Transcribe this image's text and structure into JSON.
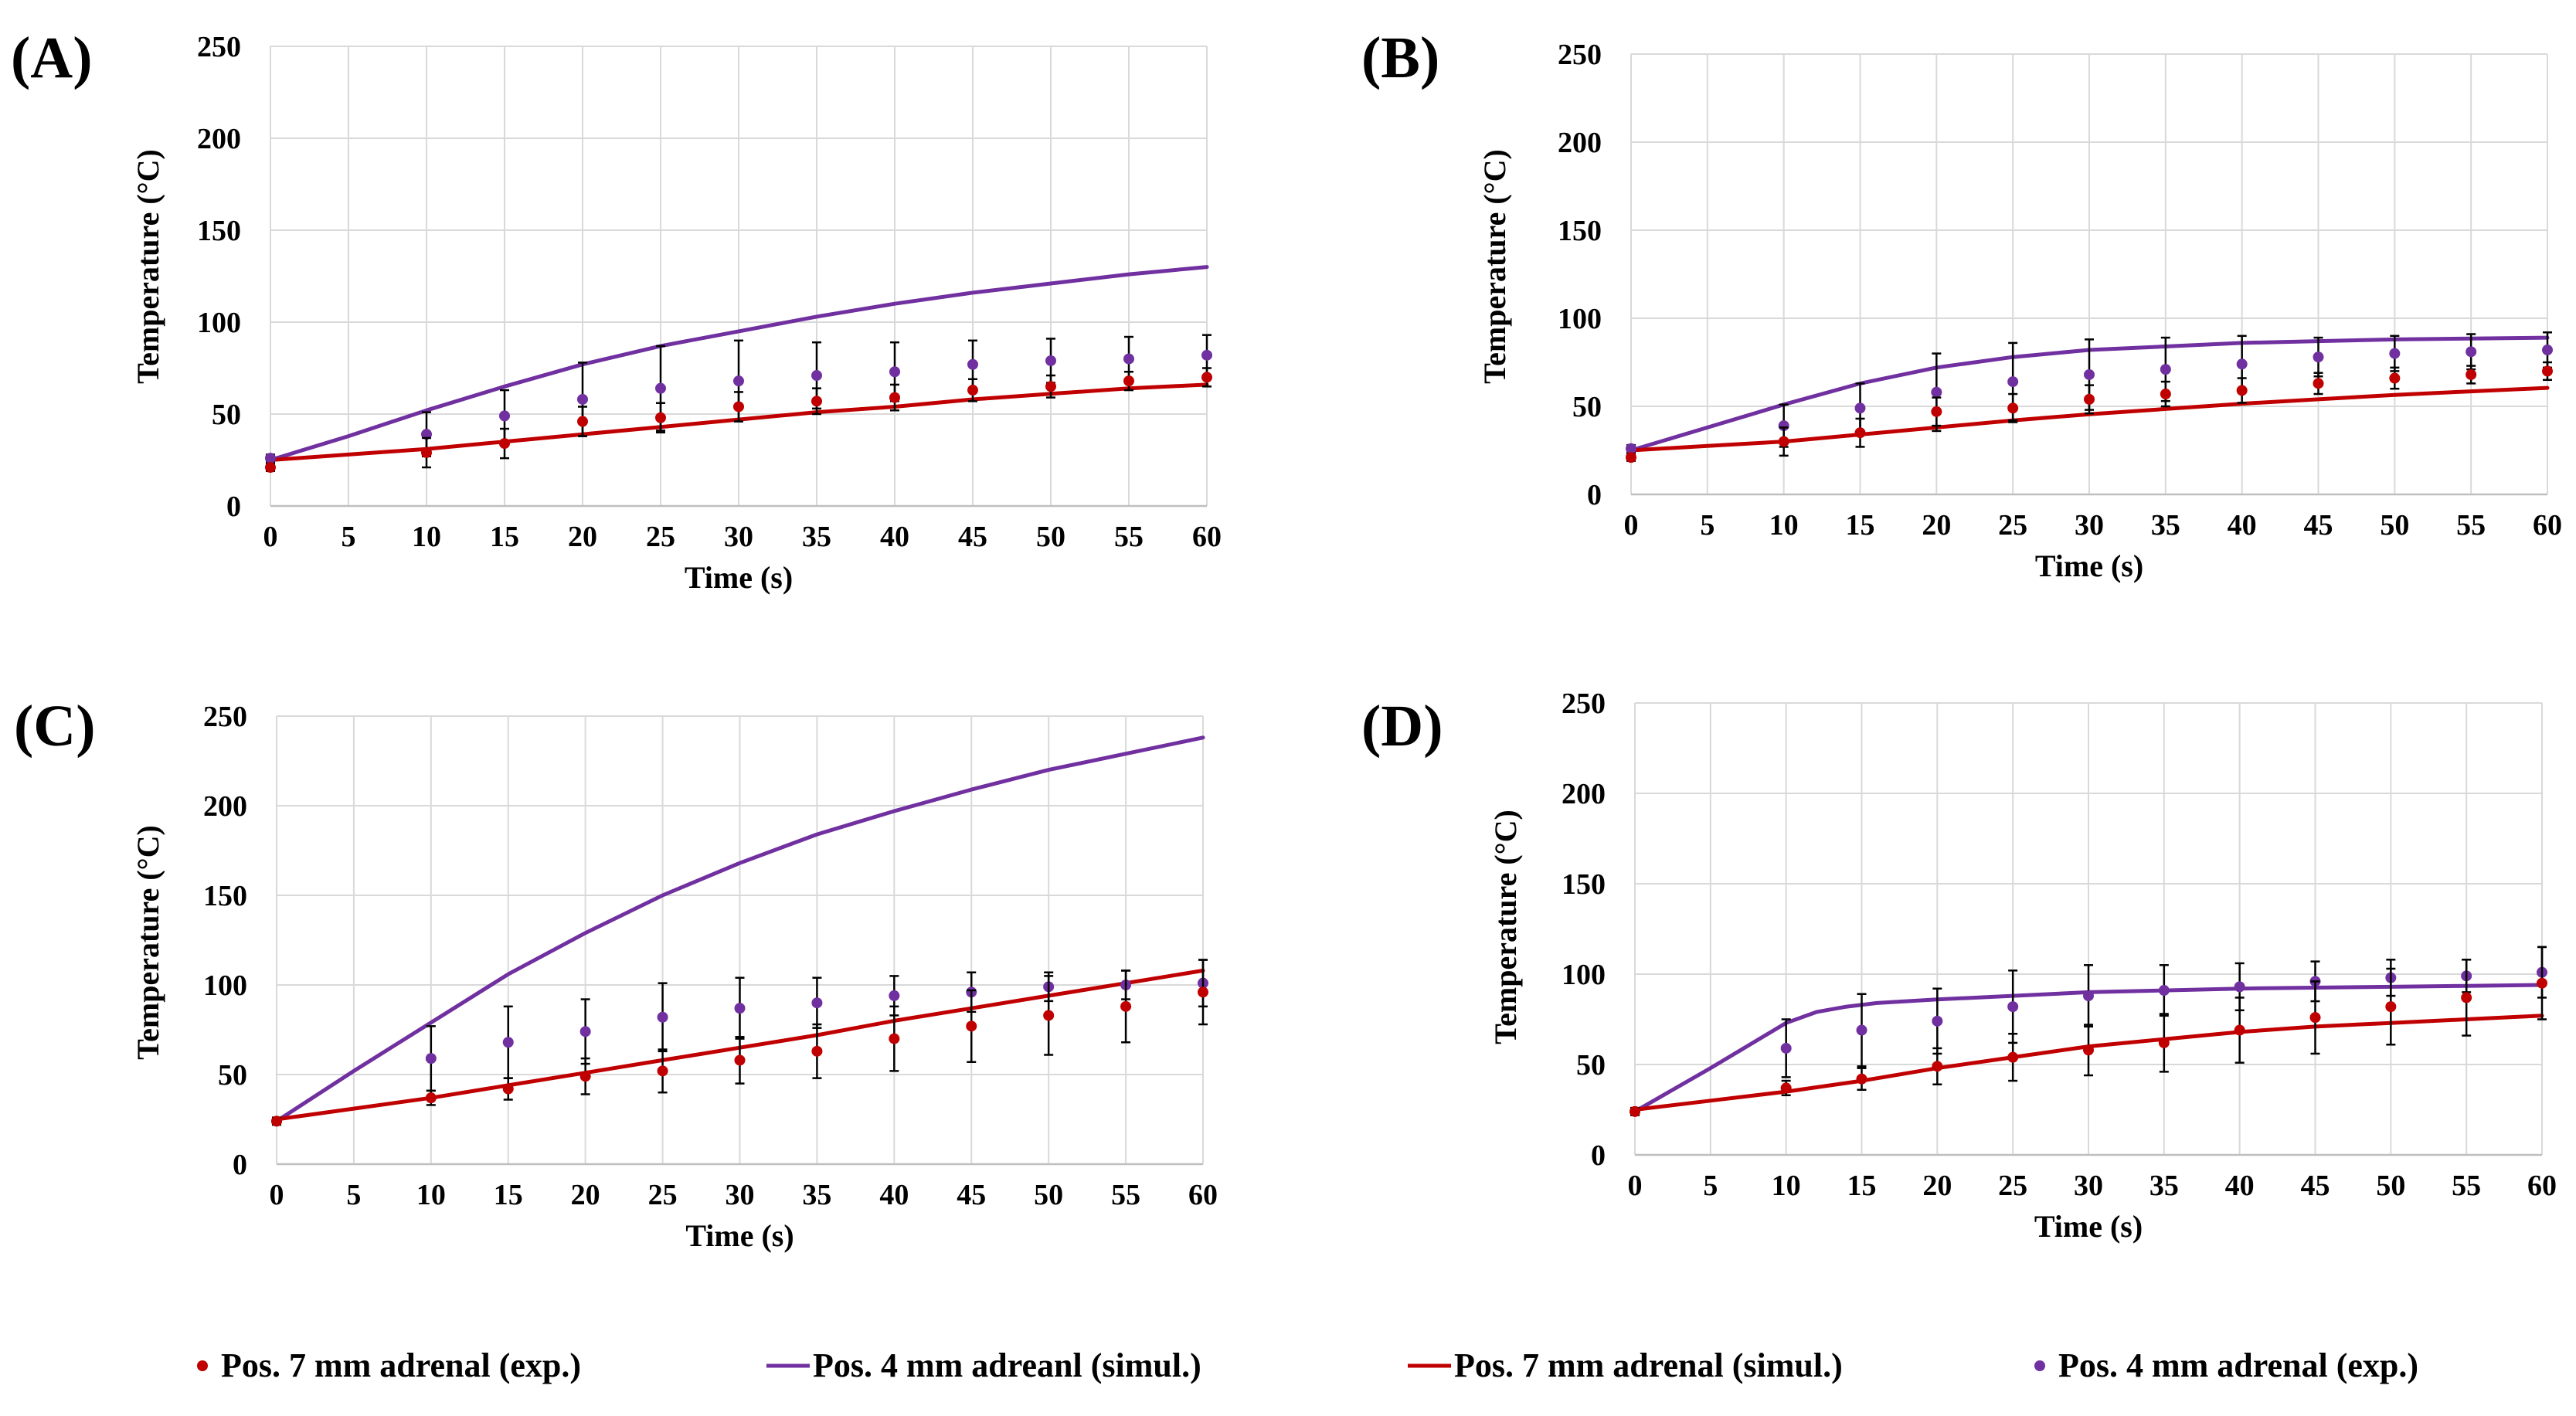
{
  "chart_data": [
    {
      "type": "line",
      "panel_label": "(A)",
      "xlabel": "Time (s)",
      "ylabel": "Temperature (°C)",
      "xlim": [
        0,
        60
      ],
      "ylim": [
        0,
        250
      ],
      "xticks": [
        0,
        5,
        10,
        15,
        20,
        25,
        30,
        35,
        40,
        45,
        50,
        55,
        60
      ],
      "yticks": [
        0,
        50,
        100,
        150,
        200,
        250
      ],
      "series": [
        {
          "name": "Pos. 4 mm adreanl (simul.)",
          "style": "line",
          "color": "#7030a0",
          "x": [
            0,
            5,
            10,
            15,
            20,
            25,
            30,
            35,
            40,
            45,
            50,
            55,
            60
          ],
          "y": [
            25,
            38,
            52,
            65,
            77,
            87,
            95,
            103,
            110,
            116,
            121,
            126,
            130
          ]
        },
        {
          "name": "Pos. 7 mm adrenal (simul.)",
          "style": "line",
          "color": "#c00000",
          "x": [
            0,
            5,
            10,
            15,
            20,
            25,
            30,
            35,
            40,
            45,
            50,
            55,
            60
          ],
          "y": [
            25,
            28,
            31,
            35,
            39,
            43,
            47,
            51,
            54,
            58,
            61,
            64,
            66
          ]
        },
        {
          "name": "Pos. 4 mm adrenal (exp.)",
          "style": "point",
          "color": "#7030a0",
          "x": [
            0,
            10,
            15,
            20,
            25,
            30,
            35,
            40,
            45,
            50,
            55,
            60
          ],
          "y": [
            26,
            39,
            49,
            58,
            64,
            68,
            71,
            73,
            77,
            79,
            80,
            82
          ],
          "err": [
            2,
            12,
            14,
            20,
            23,
            22,
            18,
            16,
            13,
            12,
            12,
            11
          ]
        },
        {
          "name": "Pos. 7 mm adrenal (exp.)",
          "style": "point",
          "color": "#c00000",
          "x": [
            0,
            10,
            15,
            20,
            25,
            30,
            35,
            40,
            45,
            50,
            55,
            60
          ],
          "y": [
            21,
            29,
            34,
            46,
            48,
            54,
            57,
            59,
            63,
            65,
            68,
            70
          ],
          "err": [
            2,
            8,
            8,
            8,
            8,
            8,
            7,
            7,
            6,
            6,
            5,
            5
          ]
        }
      ]
    },
    {
      "type": "line",
      "panel_label": "(B)",
      "xlabel": "Time (s)",
      "ylabel": "Temperature (°C)",
      "xlim": [
        0,
        60
      ],
      "ylim": [
        0,
        250
      ],
      "xticks": [
        0,
        5,
        10,
        15,
        20,
        25,
        30,
        35,
        40,
        45,
        50,
        55,
        60
      ],
      "yticks": [
        0,
        50,
        100,
        150,
        200,
        250
      ],
      "series": [
        {
          "name": "Pos. 4 mm adreanl (simul.)",
          "style": "line",
          "color": "#7030a0",
          "x": [
            0,
            5,
            10,
            15,
            20,
            25,
            30,
            35,
            40,
            45,
            50,
            55,
            60
          ],
          "y": [
            25,
            38,
            51,
            63,
            72,
            78,
            82,
            84,
            86,
            87,
            88,
            88.5,
            89
          ]
        },
        {
          "name": "Pos. 7 mm adrenal (simul.)",
          "style": "line",
          "color": "#c00000",
          "x": [
            0,
            5,
            10,
            15,
            20,
            25,
            30,
            35,
            40,
            45,
            50,
            55,
            60
          ],
          "y": [
            25,
            27.5,
            30,
            34,
            38,
            42,
            45.5,
            48.5,
            51.5,
            54,
            56.5,
            58.5,
            60.5
          ]
        },
        {
          "name": "Pos. 4 mm adrenal (exp.)",
          "style": "point",
          "color": "#7030a0",
          "x": [
            0,
            10,
            15,
            20,
            25,
            30,
            35,
            40,
            45,
            50,
            55,
            60
          ],
          "y": [
            26,
            39,
            49,
            58,
            64,
            68,
            71,
            74,
            78,
            80,
            81,
            82
          ],
          "err": [
            2,
            12,
            14,
            22,
            22,
            20,
            18,
            16,
            11,
            10,
            10,
            10
          ]
        },
        {
          "name": "Pos. 7 mm adrenal (exp.)",
          "style": "point",
          "color": "#c00000",
          "x": [
            0,
            10,
            15,
            20,
            25,
            30,
            35,
            40,
            45,
            50,
            55,
            60
          ],
          "y": [
            21,
            30,
            35,
            47,
            49,
            54,
            57,
            59,
            63,
            66,
            68,
            70
          ],
          "err": [
            2,
            8,
            8,
            8,
            8,
            8,
            7,
            7,
            6,
            6,
            5,
            5
          ]
        }
      ]
    },
    {
      "type": "line",
      "panel_label": "(C)",
      "xlabel": "Time (s)",
      "ylabel": "Temperature (°C)",
      "xlim": [
        0,
        60
      ],
      "ylim": [
        0,
        250
      ],
      "xticks": [
        0,
        5,
        10,
        15,
        20,
        25,
        30,
        35,
        40,
        45,
        50,
        55,
        60
      ],
      "yticks": [
        0,
        50,
        100,
        150,
        200,
        250
      ],
      "series": [
        {
          "name": "Pos. 4 mm adreanl (simul.)",
          "style": "line",
          "color": "#7030a0",
          "x": [
            0,
            5,
            10,
            15,
            20,
            25,
            30,
            35,
            40,
            45,
            50,
            55,
            60
          ],
          "y": [
            24,
            52,
            79,
            106,
            129,
            150,
            168,
            184,
            197,
            209,
            220,
            229,
            238
          ]
        },
        {
          "name": "Pos. 7 mm adrenal (simul.)",
          "style": "line",
          "color": "#c00000",
          "x": [
            0,
            5,
            10,
            15,
            20,
            25,
            30,
            35,
            40,
            45,
            50,
            55,
            60
          ],
          "y": [
            25,
            31,
            37,
            44,
            51,
            58,
            65,
            72,
            80,
            87,
            94,
            101,
            108
          ]
        },
        {
          "name": "Pos. 4 mm adrenal (exp.)",
          "style": "point",
          "color": "#7030a0",
          "x": [
            0,
            10,
            15,
            20,
            25,
            30,
            35,
            40,
            45,
            50,
            55,
            60
          ],
          "y": [
            24,
            59,
            68,
            74,
            82,
            87,
            90,
            94,
            96,
            99,
            100,
            101
          ],
          "err": [
            2,
            18,
            20,
            18,
            19,
            17,
            14,
            11,
            11,
            8,
            8,
            13
          ]
        },
        {
          "name": "Pos. 7 mm adrenal (exp.)",
          "style": "point",
          "color": "#c00000",
          "x": [
            0,
            10,
            15,
            20,
            25,
            30,
            35,
            40,
            45,
            50,
            55,
            60
          ],
          "y": [
            24,
            37,
            42,
            49,
            52,
            58,
            63,
            70,
            77,
            83,
            88,
            96
          ],
          "err": [
            2,
            4,
            6,
            10,
            12,
            13,
            15,
            18,
            20,
            22,
            20,
            18
          ]
        }
      ]
    },
    {
      "type": "line",
      "panel_label": "(D)",
      "xlabel": "Time (s)",
      "ylabel": "Temperature (°C)",
      "xlim": [
        0,
        60
      ],
      "ylim": [
        0,
        250
      ],
      "xticks": [
        0,
        5,
        10,
        15,
        20,
        25,
        30,
        35,
        40,
        45,
        50,
        55,
        60
      ],
      "yticks": [
        0,
        50,
        100,
        150,
        200,
        250
      ],
      "series": [
        {
          "name": "Pos. 4 mm adreanl (simul.)",
          "style": "line",
          "color": "#7030a0",
          "x": [
            0,
            5,
            10,
            12,
            14,
            16,
            20,
            25,
            30,
            35,
            40,
            45,
            50,
            55,
            60
          ],
          "y": [
            24,
            48,
            73,
            79,
            82,
            84,
            86,
            88,
            90,
            91,
            92,
            92.5,
            93,
            93.5,
            94
          ]
        },
        {
          "name": "Pos. 7 mm adrenal (simul.)",
          "style": "line",
          "color": "#c00000",
          "x": [
            0,
            5,
            10,
            15,
            20,
            25,
            30,
            35,
            40,
            45,
            50,
            55,
            60
          ],
          "y": [
            25,
            30,
            35,
            41,
            48,
            54,
            60,
            64,
            68,
            71,
            73,
            75,
            77
          ]
        },
        {
          "name": "Pos. 4 mm adrenal (exp.)",
          "style": "point",
          "color": "#7030a0",
          "x": [
            0,
            10,
            15,
            20,
            25,
            30,
            35,
            40,
            45,
            50,
            55,
            60
          ],
          "y": [
            24,
            59,
            69,
            74,
            82,
            88,
            91,
            93,
            96,
            98,
            99,
            101
          ],
          "err": [
            2,
            16,
            20,
            18,
            20,
            17,
            14,
            13,
            11,
            10,
            9,
            14
          ]
        },
        {
          "name": "Pos. 7 mm adrenal (exp.)",
          "style": "point",
          "color": "#c00000",
          "x": [
            0,
            10,
            15,
            20,
            25,
            30,
            35,
            40,
            45,
            50,
            55,
            60
          ],
          "y": [
            24,
            37,
            42,
            49,
            54,
            58,
            62,
            69,
            76,
            82,
            87,
            95
          ],
          "err": [
            2,
            4,
            6,
            10,
            13,
            14,
            16,
            18,
            20,
            21,
            21,
            20
          ]
        }
      ]
    }
  ],
  "legend": [
    {
      "label": "Pos. 7 mm adrenal (exp.)",
      "marker": "point",
      "color": "#c00000"
    },
    {
      "label": "Pos. 4 mm adreanl (simul.)",
      "marker": "line",
      "color": "#7030a0"
    },
    {
      "label": "Pos. 7 mm adrenal (simul.)",
      "marker": "line",
      "color": "#c00000"
    },
    {
      "label": "Pos. 4 mm adrenal (exp.)",
      "marker": "point",
      "color": "#7030a0"
    }
  ]
}
